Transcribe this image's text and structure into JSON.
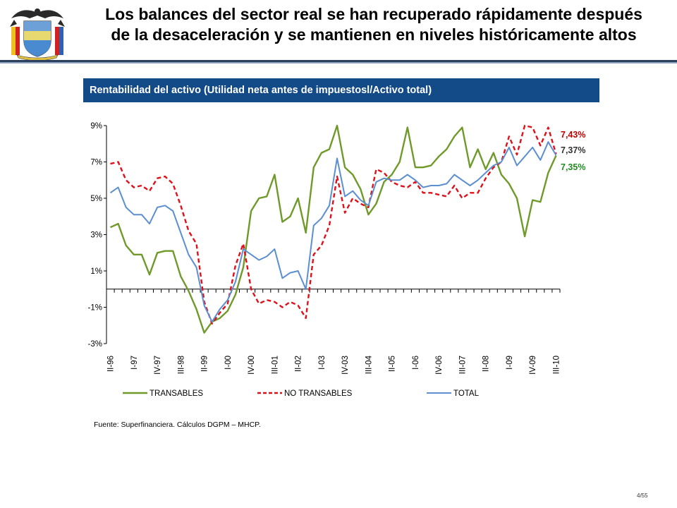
{
  "slide": {
    "title_line1": "Los balances del sector real se han recuperado rápidamente después",
    "title_line2": "de la desaceleración y se mantienen en niveles históricamente altos",
    "subtitle": "Rentabilidad del activo (Utilidad neta antes de impuestosl/Activo total)",
    "source": "Fuente: Superfinanciera. Cálculos DGPM – MHCP.",
    "page_number": "4/55"
  },
  "colors": {
    "banner": "#134a88",
    "transables": "#6f9a2a",
    "no_transables": "#e0101a",
    "total": "#5b8fd0",
    "label_red": "#c00000",
    "label_green": "#228b22"
  },
  "chart_data": {
    "type": "line",
    "title": "Rentabilidad del activo (Utilidad neta antes de impuestosl/Activo total)",
    "xlabel": "",
    "ylabel": "",
    "ylim": [
      -3,
      9
    ],
    "y_ticks": [
      "9%",
      "7%",
      "5%",
      "3%",
      "1%",
      "-1%",
      "-3%"
    ],
    "y_tick_values": [
      9,
      7,
      5,
      3,
      1,
      -1,
      -3
    ],
    "x_tick_labels": [
      "II-96",
      "I-97",
      "IV-97",
      "III-98",
      "II-99",
      "I-00",
      "IV-00",
      "III-01",
      "II-02",
      "I-03",
      "IV-03",
      "III-04",
      "II-05",
      "I-06",
      "IV-06",
      "III-07",
      "II-08",
      "I-09",
      "IV-09",
      "III-10"
    ],
    "x_tick_every": 3,
    "x_count": 58,
    "legend_position": "bottom",
    "grid": false,
    "series": [
      {
        "name": "TRANSABLES",
        "style": "solid",
        "values": [
          3.4,
          3.6,
          2.4,
          1.9,
          1.9,
          0.8,
          2.0,
          2.1,
          2.1,
          0.7,
          -0.1,
          -1.1,
          -2.4,
          -1.8,
          -1.6,
          -1.2,
          -0.3,
          1.2,
          4.3,
          5.0,
          5.1,
          6.3,
          3.7,
          4.0,
          5.0,
          3.1,
          6.7,
          7.5,
          7.7,
          9.0,
          6.7,
          6.3,
          5.5,
          4.1,
          4.7,
          5.9,
          6.3,
          7.0,
          8.9,
          6.7,
          6.7,
          6.8,
          7.3,
          7.7,
          8.4,
          8.9,
          6.7,
          7.7,
          6.6,
          7.5,
          6.3,
          5.8,
          5.0,
          2.9,
          4.9,
          4.8,
          6.4,
          7.35
        ],
        "end_label": "7,35%"
      },
      {
        "name": "NO TRANSABLES",
        "style": "dashed",
        "values": [
          6.9,
          7.0,
          6.0,
          5.6,
          5.7,
          5.4,
          6.1,
          6.2,
          5.8,
          4.6,
          3.2,
          2.5,
          -0.7,
          -1.9,
          -1.3,
          -0.8,
          1.3,
          2.5,
          0.0,
          -0.8,
          -0.6,
          -0.7,
          -1.0,
          -0.7,
          -0.9,
          -1.6,
          1.9,
          2.4,
          3.5,
          6.2,
          4.2,
          5.0,
          4.7,
          4.5,
          6.6,
          6.4,
          5.9,
          5.7,
          5.6,
          5.9,
          5.3,
          5.3,
          5.2,
          5.1,
          5.7,
          5.0,
          5.3,
          5.3,
          6.1,
          6.7,
          7.0,
          8.4,
          7.4,
          9.0,
          8.9,
          7.9,
          8.9,
          7.43
        ],
        "end_label": "7,43%"
      },
      {
        "name": "TOTAL",
        "style": "solid",
        "values": [
          5.3,
          5.6,
          4.5,
          4.1,
          4.1,
          3.6,
          4.5,
          4.6,
          4.3,
          3.1,
          1.9,
          1.2,
          -0.9,
          -1.8,
          -1.1,
          -0.6,
          0.4,
          2.2,
          1.9,
          1.6,
          1.8,
          2.2,
          0.6,
          0.9,
          1.0,
          0.0,
          3.5,
          3.9,
          4.6,
          7.2,
          5.1,
          5.4,
          4.9,
          4.6,
          5.9,
          6.1,
          6.0,
          6.0,
          6.3,
          6.0,
          5.6,
          5.7,
          5.7,
          5.8,
          6.3,
          6.0,
          5.7,
          6.0,
          6.4,
          6.8,
          7.0,
          7.8,
          6.8,
          7.3,
          7.8,
          7.1,
          8.1,
          7.37
        ],
        "end_label": "7,37%"
      }
    ]
  }
}
